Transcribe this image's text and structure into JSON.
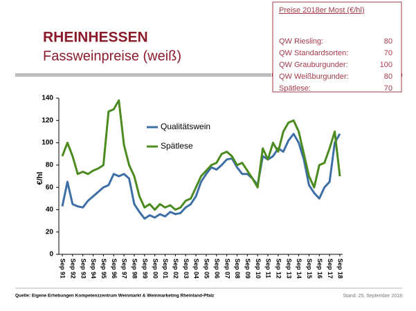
{
  "header": {
    "title": "RHEINHESSEN",
    "subtitle": "Fassweinpreise (weiß)"
  },
  "box": {
    "title": "Preise 2018er Most (€/hl)",
    "rows": [
      [
        "QW Riesling:",
        80
      ],
      [
        "QW Standardsorten:",
        70
      ],
      [
        "QW Grauburgunder:",
        100
      ],
      [
        "QW Weißburgunder:",
        80
      ],
      [
        "Spätlese:",
        70
      ]
    ]
  },
  "chart_data": {
    "type": "line",
    "ylabel": "€/hl",
    "ylim": [
      0,
      140
    ],
    "yticks": [
      0,
      20,
      40,
      60,
      80,
      100,
      120,
      140
    ],
    "grid": false,
    "legend": "upper left",
    "categories": [
      "Sep 91",
      null,
      "Sep 92",
      null,
      "Sep 93",
      null,
      "Sep 94",
      null,
      "Sep 95",
      null,
      "Sep 96",
      null,
      "Sep 97",
      null,
      "Sep 98",
      null,
      "Sep 99",
      null,
      "Sep 00",
      null,
      "Sep 01",
      null,
      "Sep 02",
      null,
      "Sep 03",
      null,
      "Sep 04",
      null,
      "Sep 05",
      null,
      "Sep 06",
      null,
      "Sep 07",
      null,
      "Sep 08",
      null,
      "Sep 09",
      null,
      "Sep 10",
      null,
      "Sep 11",
      null,
      "Sep 12",
      null,
      "Sep 13",
      null,
      "Sep 14",
      null,
      "Sep 15",
      null,
      "Sep 16",
      null,
      "Sep 17",
      null,
      "Sep 18"
    ],
    "series": [
      {
        "name": "Qualitätswein",
        "color": "#3d6fa6",
        "values": [
          43,
          65,
          45,
          43,
          42,
          48,
          52,
          56,
          60,
          62,
          72,
          70,
          72,
          68,
          45,
          38,
          32,
          35,
          33,
          36,
          34,
          38,
          36,
          37,
          42,
          45,
          52,
          65,
          72,
          78,
          76,
          80,
          85,
          86,
          78,
          72,
          72,
          68,
          62,
          88,
          85,
          88,
          95,
          92,
          102,
          108,
          100,
          85,
          62,
          55,
          50,
          60,
          65,
          100,
          108
        ]
      },
      {
        "name": "Spätlese",
        "color": "#4a8a1e",
        "values": [
          88,
          100,
          88,
          72,
          74,
          72,
          75,
          77,
          80,
          128,
          130,
          138,
          98,
          80,
          70,
          52,
          42,
          45,
          40,
          45,
          42,
          44,
          40,
          42,
          48,
          50,
          60,
          70,
          75,
          80,
          82,
          90,
          92,
          88,
          80,
          82,
          75,
          68,
          60,
          95,
          85,
          100,
          92,
          110,
          118,
          120,
          110,
          90,
          70,
          60,
          80,
          82,
          95,
          110,
          70
        ]
      }
    ]
  },
  "footer": {
    "source": "Quelle: Eigene Erhebungen Kompetenzzentrum Weinmarkt & Weinmarketing Rheinland-Pfalz",
    "date": "Stand: 25. September 2018"
  }
}
